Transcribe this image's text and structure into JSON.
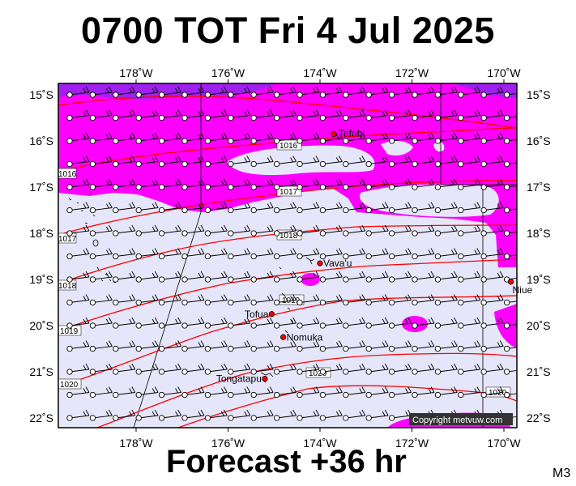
{
  "header": {
    "title": "0700 TOT Fri 4 Jul 2025"
  },
  "footer": {
    "subtitle": "Forecast +36 hr",
    "code": "M3"
  },
  "map": {
    "lon_ticks": [
      "178˚W",
      "176˚W",
      "174˚W",
      "172˚W",
      "170˚W"
    ],
    "lat_ticks": [
      "15˚S",
      "16˚S",
      "17˚S",
      "18˚S",
      "19˚S",
      "20˚S",
      "21˚S",
      "22˚S"
    ],
    "places": [
      {
        "name": "Tafahi",
        "lon": -173.7,
        "lat": -15.85
      },
      {
        "name": "Vava'u",
        "lon": -174.0,
        "lat": -18.65
      },
      {
        "name": "Niue",
        "lon": -169.85,
        "lat": -19.05
      },
      {
        "name": "Tofua",
        "lon": -175.05,
        "lat": -19.75
      },
      {
        "name": "Nomuka",
        "lon": -174.8,
        "lat": -20.25
      },
      {
        "name": "Tongatapu",
        "lon": -175.2,
        "lat": -21.15
      }
    ],
    "isobars": [
      "1016",
      "1016",
      "1017",
      "1017",
      "1018",
      "1018",
      "1019",
      "1019",
      "1020",
      "1020",
      "1020"
    ],
    "copyright": "Copyright metvuw.com",
    "colors": {
      "land_sea_low": "#e6e6fa",
      "rain": "#ff00ff",
      "heavy_rain": "#a020f0",
      "isobar": "#ff0000"
    }
  }
}
